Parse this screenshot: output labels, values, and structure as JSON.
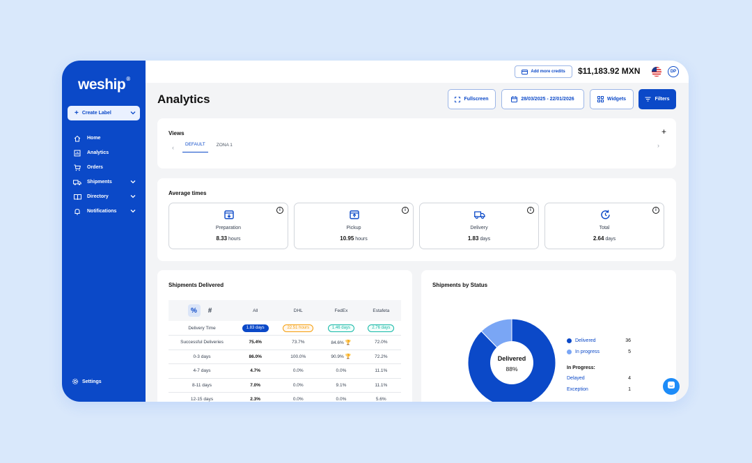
{
  "brand": {
    "logo": "weship",
    "logo_mark": "®"
  },
  "sidebar": {
    "create_label": "Create Label",
    "items": [
      {
        "label": "Home",
        "icon": "home-icon"
      },
      {
        "label": "Analytics",
        "icon": "analytics-icon"
      },
      {
        "label": "Orders",
        "icon": "cart-icon"
      },
      {
        "label": "Shipments",
        "icon": "truck-icon"
      },
      {
        "label": "Directory",
        "icon": "book-icon"
      },
      {
        "label": "Notifications",
        "icon": "bell-icon"
      }
    ],
    "settings": "Settings"
  },
  "topbar": {
    "credits_button": "Add more credits",
    "balance": "$11,183.92 MXN",
    "avatar": "DP"
  },
  "header": {
    "title": "Analytics",
    "fullscreen": "Fullscreen",
    "date_range": "28/03/2025 - 22/01/2026",
    "widgets": "Widgets",
    "filters": "Filters"
  },
  "views": {
    "title": "Views",
    "tabs": [
      "DEFAULT",
      "ZONA 1"
    ],
    "active_tab": "DEFAULT"
  },
  "average_times": {
    "title": "Average times",
    "cards": [
      {
        "label": "Preparation",
        "value": "8.33",
        "unit": "hours",
        "icon": "box-down-icon"
      },
      {
        "label": "Pickup",
        "value": "10.95",
        "unit": "hours",
        "icon": "box-up-icon"
      },
      {
        "label": "Delivery",
        "value": "1.83",
        "unit": "days",
        "icon": "truck-icon"
      },
      {
        "label": "Total",
        "value": "2.64",
        "unit": "days",
        "icon": "refresh-clock-icon"
      }
    ]
  },
  "shipments_delivered": {
    "title": "Shipments Delivered",
    "toggle": {
      "percent": "%",
      "count": "#",
      "active": "percent"
    },
    "columns": [
      "All",
      "DHL",
      "FedEx",
      "Estafeta"
    ],
    "pill_row": {
      "label": "Delivery Time",
      "values": [
        "1.83 days",
        "22.51 hours",
        "1.46 days",
        "2.76 days"
      ]
    },
    "rows": [
      {
        "label": "Successful Deliveries",
        "values": [
          "75.4%",
          "73.7%",
          "84.6%",
          "72.0%"
        ],
        "trophy": 2
      },
      {
        "label": "0-3 days",
        "values": [
          "86.0%",
          "100.0%",
          "90.9%",
          "72.2%"
        ],
        "trophy": 2
      },
      {
        "label": "4-7 days",
        "values": [
          "4.7%",
          "0.0%",
          "0.0%",
          "11.1%"
        ]
      },
      {
        "label": "8-11 days",
        "values": [
          "7.0%",
          "0.0%",
          "9.1%",
          "11.1%"
        ]
      },
      {
        "label": "12-15 days",
        "values": [
          "2.3%",
          "0.0%",
          "0.0%",
          "5.6%"
        ]
      }
    ]
  },
  "shipments_by_status": {
    "title": "Shipments by Status",
    "center_label": "Delivered",
    "center_value": "88%",
    "legend": [
      {
        "name": "Delivered",
        "count": "36",
        "color": "#0b49c8"
      },
      {
        "name": "In progress",
        "count": "5",
        "color": "#7aa6f5"
      }
    ],
    "in_progress_title": "In Progress:",
    "in_progress": [
      {
        "name": "Delayed",
        "count": "4"
      },
      {
        "name": "Exception",
        "count": "1"
      }
    ]
  },
  "colors": {
    "accent": "#0b49c8",
    "light_accent": "#7aa6f5",
    "chat": "#1d8cf8"
  }
}
